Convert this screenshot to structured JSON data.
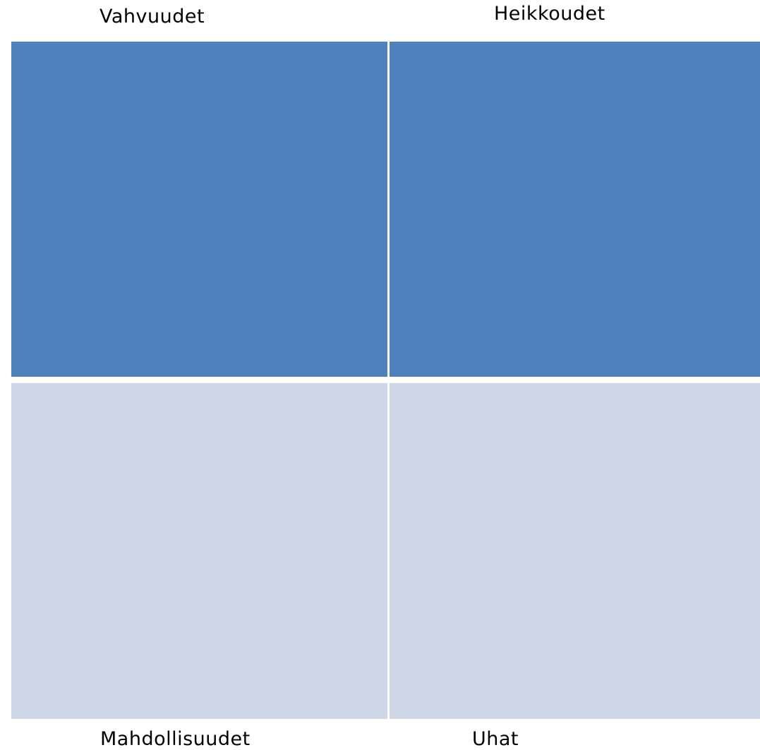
{
  "swot": {
    "strengths": {
      "label": "Vahvuudet",
      "color": "#4F81BD"
    },
    "weaknesses": {
      "label": "Heikkoudet",
      "color": "#4F81BD"
    },
    "opportunities": {
      "label": "Mahdollisuudet",
      "color": "#D0D8E8"
    },
    "threats": {
      "label": "Uhat",
      "color": "#D0D8E8"
    }
  }
}
